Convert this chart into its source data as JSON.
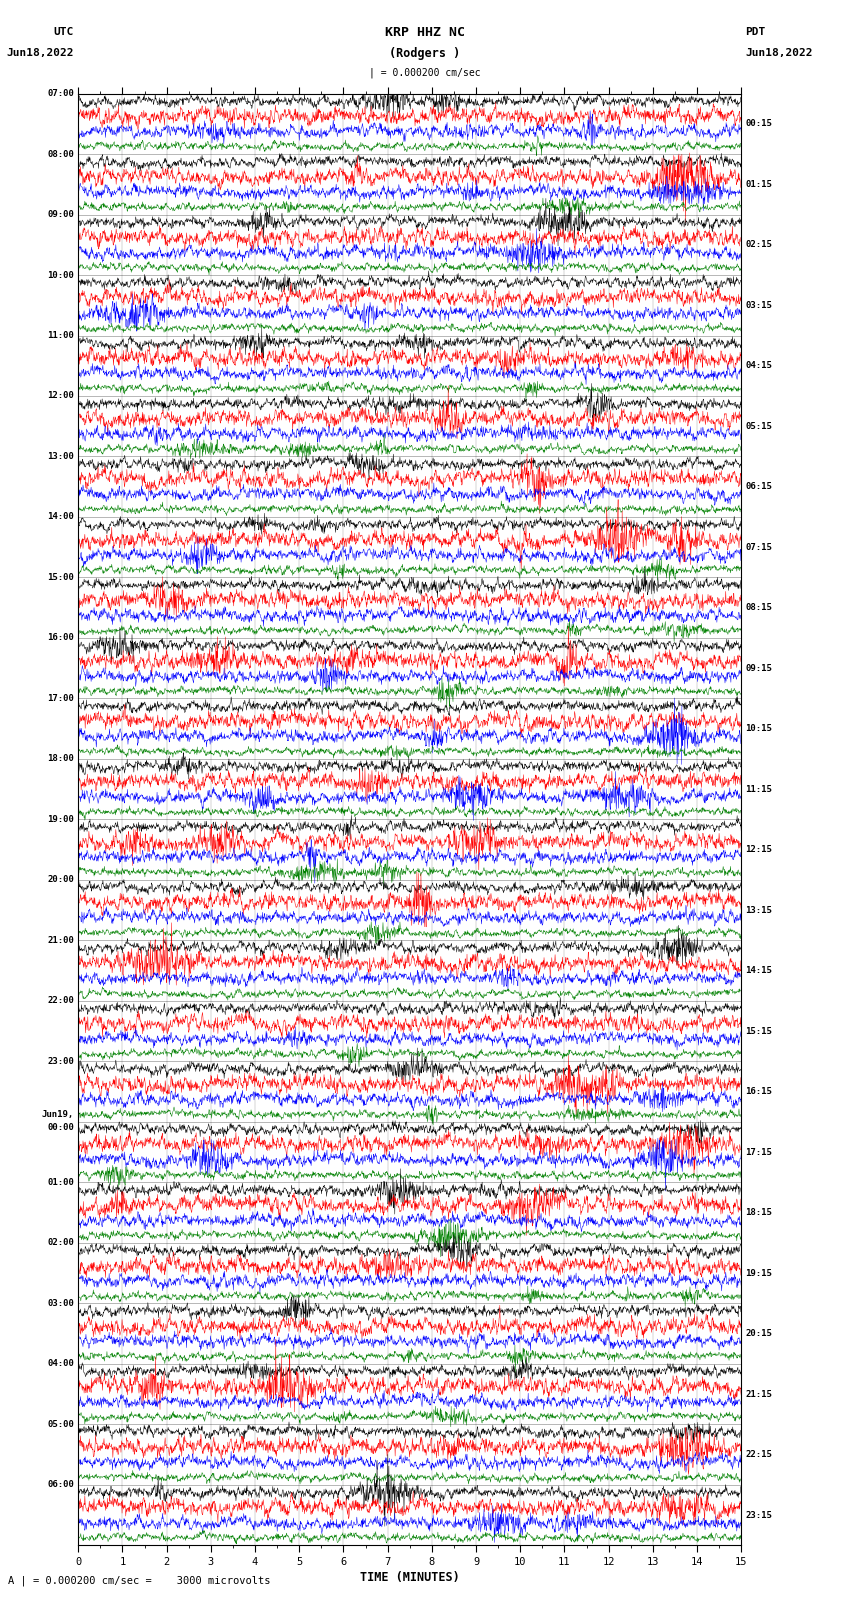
{
  "title_line1": "KRP HHZ NC",
  "title_line2": "(Rodgers )",
  "scale_text": "| = 0.000200 cm/sec",
  "bottom_text": "A | = 0.000200 cm/sec =    3000 microvolts",
  "left_header_line1": "UTC",
  "left_header_line2": "Jun18,2022",
  "right_header_line1": "PDT",
  "right_header_line2": "Jun18,2022",
  "xlabel": "TIME (MINUTES)",
  "left_times": [
    "07:00",
    "08:00",
    "09:00",
    "10:00",
    "11:00",
    "12:00",
    "13:00",
    "14:00",
    "15:00",
    "16:00",
    "17:00",
    "18:00",
    "19:00",
    "20:00",
    "21:00",
    "22:00",
    "23:00",
    "Jun19,\n00:00",
    "01:00",
    "02:00",
    "03:00",
    "04:00",
    "05:00",
    "06:00"
  ],
  "right_times": [
    "00:15",
    "01:15",
    "02:15",
    "03:15",
    "04:15",
    "05:15",
    "06:15",
    "07:15",
    "08:15",
    "09:15",
    "10:15",
    "11:15",
    "12:15",
    "13:15",
    "14:15",
    "15:15",
    "16:15",
    "17:15",
    "18:15",
    "19:15",
    "20:15",
    "21:15",
    "22:15",
    "23:15"
  ],
  "n_rows": 24,
  "traces_per_row": 4,
  "colors": [
    "black",
    "red",
    "blue",
    "green"
  ],
  "xlim": [
    0,
    15
  ],
  "fig_width": 8.5,
  "fig_height": 16.13,
  "dpi": 100,
  "bg_color": "white",
  "seed": 42
}
